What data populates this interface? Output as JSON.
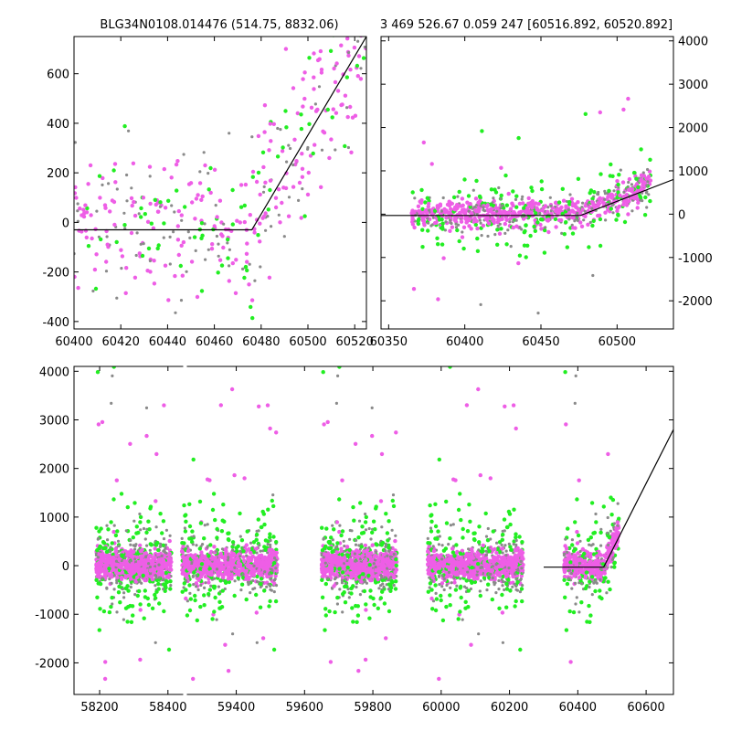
{
  "titles": {
    "left": "BLG34N0108.014476 (514.75, 8832.06)",
    "right": "3 469 526.67 0.059 247 [60516.892, 60520.892]"
  },
  "colors": {
    "magenta": "#ee5ee6",
    "green": "#22ee22",
    "gray": "#8a8a8a",
    "model": "#000000"
  },
  "chart_data": [
    {
      "id": "zoom",
      "type": "scatter",
      "title": "BLG34N0108.014476 (514.75, 8832.06)",
      "xlim": [
        60400,
        60525
      ],
      "ylim": [
        -430,
        750
      ],
      "xticks": [
        60400,
        60420,
        60440,
        60460,
        60480,
        60500,
        60520
      ],
      "yticks": [
        -400,
        -200,
        0,
        200,
        400,
        600
      ],
      "grid": false,
      "model_line": [
        [
          60400,
          -30
        ],
        [
          60476,
          -30
        ],
        [
          60525,
          750
        ]
      ]
    },
    {
      "id": "season",
      "type": "scatter",
      "title": "3 469 526.67 0.059 247 [60516.892, 60520.892]",
      "xlim": [
        60345,
        60537
      ],
      "ylim": [
        -2650,
        4100
      ],
      "xticks": [
        60350,
        60400,
        60450,
        60500
      ],
      "yticks": [
        -2000,
        -1000,
        0,
        1000,
        2000,
        3000,
        4000
      ],
      "y_axis_side": "right",
      "grid": false,
      "model_line": [
        [
          60345,
          -30
        ],
        [
          60476,
          -30
        ],
        [
          60537,
          800
        ]
      ]
    },
    {
      "id": "full",
      "type": "scatter",
      "title": "",
      "xlim": [
        58125,
        60680
      ],
      "ylim": [
        -2650,
        4100
      ],
      "xticks": [
        58200,
        58400,
        59400,
        59600,
        59800,
        60000,
        60200,
        60400,
        60600
      ],
      "yticks": [
        -2000,
        -1000,
        0,
        1000,
        2000,
        3000,
        4000
      ],
      "broken_axis_after": 58450,
      "broken_axis_resume": 59250,
      "grid": false,
      "model_line": [
        [
          60300,
          -30
        ],
        [
          60476,
          -30
        ],
        [
          60680,
          2800
        ]
      ],
      "seasons": [
        {
          "center": 58300,
          "halfwidth": 110
        },
        {
          "center": 59380,
          "halfwidth": 140
        },
        {
          "center": 59760,
          "halfwidth": 110
        },
        {
          "center": 60100,
          "halfwidth": 140
        },
        {
          "center": 60440,
          "halfwidth": 80
        }
      ]
    }
  ]
}
